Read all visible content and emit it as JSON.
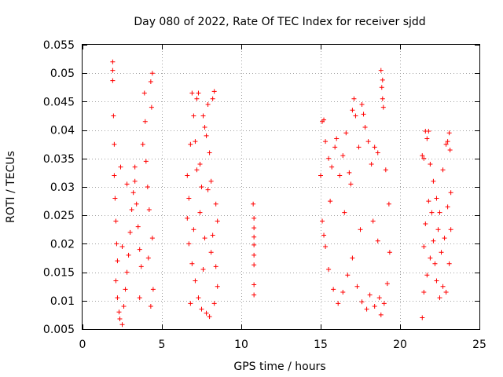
{
  "chart_data": {
    "type": "scatter",
    "title": "Day 080 of 2022, Rate Of TEC Index for receiver sjdd",
    "xlabel": "GPS time / hours",
    "ylabel": "ROTI / TECUs",
    "xlim": [
      0,
      25
    ],
    "ylim": [
      0.005,
      0.055
    ],
    "xticks": [
      0,
      5,
      10,
      15,
      20,
      25
    ],
    "yticks": [
      0.005,
      0.01,
      0.015,
      0.02,
      0.025,
      0.03,
      0.035,
      0.04,
      0.045,
      0.05,
      0.055
    ],
    "xtick_labels": [
      "0",
      "5",
      "10",
      "15",
      "20",
      "25"
    ],
    "ytick_labels": [
      "0.005",
      "0.01",
      "0.015",
      "0.02",
      "0.025",
      "0.03",
      "0.035",
      "0.04",
      "0.045",
      "0.05",
      "0.055"
    ],
    "grid": true,
    "marker": "+",
    "color": "#ff0000",
    "series": [
      {
        "points": [
          [
            1.9,
            0.052
          ],
          [
            1.9,
            0.0505
          ],
          [
            1.9,
            0.0487
          ],
          [
            1.95,
            0.0425
          ],
          [
            2.0,
            0.0375
          ],
          [
            2.0,
            0.032
          ],
          [
            2.05,
            0.028
          ],
          [
            2.1,
            0.024
          ],
          [
            2.15,
            0.02
          ],
          [
            2.2,
            0.017
          ],
          [
            2.1,
            0.0135
          ],
          [
            2.2,
            0.0105
          ],
          [
            2.3,
            0.008
          ],
          [
            2.35,
            0.0068
          ],
          [
            2.5,
            0.0058
          ],
          [
            2.6,
            0.009
          ],
          [
            2.7,
            0.012
          ],
          [
            2.8,
            0.015
          ],
          [
            2.9,
            0.018
          ],
          [
            3.0,
            0.022
          ],
          [
            3.1,
            0.026
          ],
          [
            3.2,
            0.029
          ],
          [
            3.3,
            0.031
          ],
          [
            3.4,
            0.027
          ],
          [
            3.5,
            0.023
          ],
          [
            3.6,
            0.019
          ],
          [
            3.7,
            0.016
          ],
          [
            3.8,
            0.0375
          ],
          [
            3.9,
            0.0465
          ],
          [
            3.95,
            0.0415
          ],
          [
            4.0,
            0.0345
          ],
          [
            4.1,
            0.03
          ],
          [
            4.2,
            0.026
          ],
          [
            4.3,
            0.0485
          ],
          [
            4.35,
            0.044
          ],
          [
            4.4,
            0.05
          ],
          [
            4.4,
            0.021
          ],
          [
            4.45,
            0.012
          ],
          [
            4.3,
            0.009
          ],
          [
            2.4,
            0.0335
          ],
          [
            2.8,
            0.0305
          ],
          [
            3.3,
            0.0335
          ],
          [
            2.5,
            0.0195
          ],
          [
            3.6,
            0.0105
          ],
          [
            4.15,
            0.0175
          ]
        ]
      },
      {
        "points": [
          [
            6.6,
            0.032
          ],
          [
            6.7,
            0.028
          ],
          [
            6.8,
            0.0375
          ],
          [
            6.9,
            0.0465
          ],
          [
            7.0,
            0.0425
          ],
          [
            7.1,
            0.038
          ],
          [
            7.2,
            0.0455
          ],
          [
            7.3,
            0.0465
          ],
          [
            7.4,
            0.034
          ],
          [
            7.5,
            0.03
          ],
          [
            7.6,
            0.0425
          ],
          [
            7.7,
            0.0405
          ],
          [
            7.8,
            0.039
          ],
          [
            7.9,
            0.0445
          ],
          [
            8.0,
            0.036
          ],
          [
            8.1,
            0.031
          ],
          [
            8.2,
            0.0455
          ],
          [
            8.3,
            0.0468
          ],
          [
            8.4,
            0.027
          ],
          [
            8.5,
            0.024
          ],
          [
            6.7,
            0.02
          ],
          [
            6.9,
            0.0165
          ],
          [
            7.1,
            0.0135
          ],
          [
            7.3,
            0.0105
          ],
          [
            7.5,
            0.0085
          ],
          [
            7.8,
            0.0078
          ],
          [
            8.0,
            0.0072
          ],
          [
            8.3,
            0.0095
          ],
          [
            8.5,
            0.0125
          ],
          [
            6.8,
            0.0095
          ],
          [
            7.0,
            0.0225
          ],
          [
            7.4,
            0.0255
          ],
          [
            7.7,
            0.021
          ],
          [
            8.1,
            0.0185
          ],
          [
            8.4,
            0.016
          ],
          [
            7.2,
            0.033
          ],
          [
            7.9,
            0.0295
          ],
          [
            6.6,
            0.0245
          ],
          [
            8.2,
            0.0215
          ],
          [
            7.6,
            0.0155
          ]
        ]
      },
      {
        "points": [
          [
            10.75,
            0.027
          ],
          [
            10.8,
            0.0245
          ],
          [
            10.8,
            0.0228
          ],
          [
            10.8,
            0.0212
          ],
          [
            10.8,
            0.0198
          ],
          [
            10.8,
            0.018
          ],
          [
            10.8,
            0.0163
          ],
          [
            10.8,
            0.0128
          ],
          [
            10.8,
            0.011
          ]
        ]
      },
      {
        "points": [
          [
            15.0,
            0.032
          ],
          [
            15.1,
            0.0415
          ],
          [
            15.2,
            0.0418
          ],
          [
            15.3,
            0.038
          ],
          [
            15.5,
            0.035
          ],
          [
            15.7,
            0.0335
          ],
          [
            15.9,
            0.037
          ],
          [
            16.0,
            0.0385
          ],
          [
            16.2,
            0.032
          ],
          [
            16.4,
            0.0355
          ],
          [
            16.6,
            0.0395
          ],
          [
            16.8,
            0.0325
          ],
          [
            17.0,
            0.0435
          ],
          [
            17.1,
            0.0455
          ],
          [
            17.2,
            0.0425
          ],
          [
            17.4,
            0.037
          ],
          [
            17.6,
            0.0445
          ],
          [
            17.7,
            0.0428
          ],
          [
            17.8,
            0.0405
          ],
          [
            18.0,
            0.038
          ],
          [
            18.2,
            0.034
          ],
          [
            18.4,
            0.037
          ],
          [
            18.6,
            0.036
          ],
          [
            18.8,
            0.0505
          ],
          [
            18.9,
            0.0488
          ],
          [
            18.85,
            0.0475
          ],
          [
            18.9,
            0.0455
          ],
          [
            18.95,
            0.044
          ],
          [
            19.1,
            0.033
          ],
          [
            19.3,
            0.027
          ],
          [
            15.1,
            0.024
          ],
          [
            15.3,
            0.0195
          ],
          [
            15.5,
            0.0155
          ],
          [
            15.8,
            0.012
          ],
          [
            16.1,
            0.0095
          ],
          [
            16.4,
            0.0115
          ],
          [
            16.7,
            0.0145
          ],
          [
            17.0,
            0.0175
          ],
          [
            17.3,
            0.0125
          ],
          [
            17.6,
            0.0098
          ],
          [
            17.9,
            0.0085
          ],
          [
            18.1,
            0.011
          ],
          [
            18.4,
            0.009
          ],
          [
            18.7,
            0.0105
          ],
          [
            18.8,
            0.0075
          ],
          [
            19.0,
            0.0095
          ],
          [
            19.2,
            0.013
          ],
          [
            19.35,
            0.0185
          ],
          [
            15.6,
            0.0275
          ],
          [
            16.5,
            0.0255
          ],
          [
            17.5,
            0.0225
          ],
          [
            18.3,
            0.024
          ],
          [
            16.9,
            0.0305
          ],
          [
            15.2,
            0.0215
          ],
          [
            18.6,
            0.0205
          ]
        ]
      },
      {
        "points": [
          [
            21.4,
            0.0355
          ],
          [
            21.5,
            0.035
          ],
          [
            21.6,
            0.0398
          ],
          [
            21.7,
            0.0385
          ],
          [
            21.8,
            0.0398
          ],
          [
            21.9,
            0.034
          ],
          [
            22.1,
            0.031
          ],
          [
            22.3,
            0.028
          ],
          [
            22.5,
            0.0255
          ],
          [
            22.7,
            0.033
          ],
          [
            22.9,
            0.0375
          ],
          [
            23.0,
            0.038
          ],
          [
            23.1,
            0.0395
          ],
          [
            23.15,
            0.0365
          ],
          [
            23.2,
            0.029
          ],
          [
            21.4,
            0.007
          ],
          [
            21.5,
            0.0115
          ],
          [
            21.7,
            0.0145
          ],
          [
            21.9,
            0.0175
          ],
          [
            22.1,
            0.0205
          ],
          [
            22.3,
            0.0135
          ],
          [
            22.5,
            0.0105
          ],
          [
            22.7,
            0.0125
          ],
          [
            22.9,
            0.0115
          ],
          [
            23.1,
            0.0165
          ],
          [
            21.6,
            0.0235
          ],
          [
            22.0,
            0.0255
          ],
          [
            22.4,
            0.0225
          ],
          [
            22.8,
            0.021
          ],
          [
            23.2,
            0.0225
          ],
          [
            21.8,
            0.0275
          ],
          [
            22.6,
            0.0185
          ],
          [
            23.0,
            0.0265
          ],
          [
            21.5,
            0.0195
          ],
          [
            22.2,
            0.0165
          ]
        ]
      }
    ]
  }
}
